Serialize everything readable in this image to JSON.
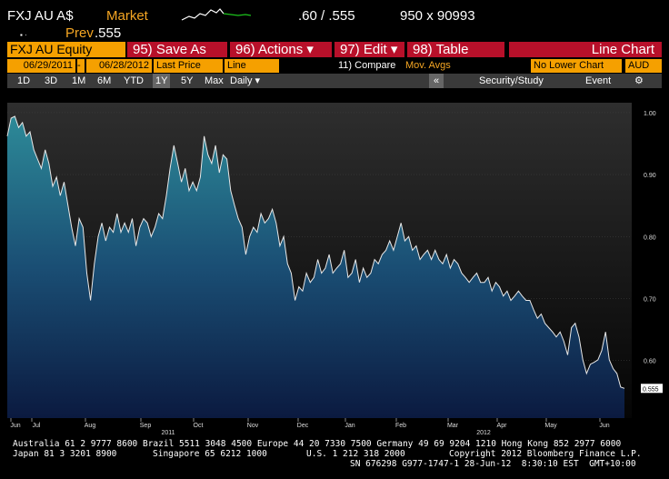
{
  "header": {
    "ticker": "FXJ AU A$",
    "market_label": "Market",
    "quote": ".60 / .555",
    "size": "950 x 90993",
    "prev_label": "Prev",
    "prev_value": ".555"
  },
  "toolbar": {
    "security": "FXJ AU Equity",
    "buttons": [
      "95) Save As",
      "96) Actions ▾",
      "97) Edit ▾",
      "98) Table"
    ],
    "chart_name": "Line Chart",
    "start_date": "06/29/2011",
    "dash": "-",
    "end_date": "06/28/2012",
    "field": "Last Price",
    "style": "Line",
    "compare": "11) Compare",
    "mov_avgs": "Mov. Avgs",
    "lower": "No Lower Chart",
    "currency": "AUD",
    "periods": [
      "1D",
      "3D",
      "1M",
      "6M",
      "YTD",
      "1Y",
      "5Y",
      "Max"
    ],
    "frequency": "Daily ▾",
    "collapse": "«",
    "study": "Security/Study",
    "event": "Event",
    "settings": "⚙"
  },
  "chart_data": {
    "type": "area",
    "color": "#e8e8e8",
    "values": [
      0.962,
      0.991,
      0.994,
      0.976,
      0.984,
      0.962,
      0.969,
      0.94,
      0.925,
      0.91,
      0.94,
      0.918,
      0.881,
      0.896,
      0.866,
      0.888,
      0.851,
      0.815,
      0.785,
      0.829,
      0.815,
      0.741,
      0.697,
      0.756,
      0.8,
      0.822,
      0.793,
      0.815,
      0.807,
      0.837,
      0.807,
      0.822,
      0.807,
      0.829,
      0.785,
      0.815,
      0.829,
      0.822,
      0.8,
      0.815,
      0.837,
      0.829,
      0.866,
      0.91,
      0.947,
      0.918,
      0.888,
      0.91,
      0.874,
      0.888,
      0.874,
      0.896,
      0.962,
      0.932,
      0.918,
      0.947,
      0.903,
      0.932,
      0.925,
      0.874,
      0.851,
      0.829,
      0.815,
      0.771,
      0.8,
      0.815,
      0.807,
      0.837,
      0.822,
      0.829,
      0.844,
      0.822,
      0.785,
      0.8,
      0.756,
      0.741,
      0.697,
      0.719,
      0.712,
      0.741,
      0.726,
      0.734,
      0.763,
      0.741,
      0.749,
      0.771,
      0.741,
      0.749,
      0.756,
      0.778,
      0.734,
      0.741,
      0.763,
      0.726,
      0.749,
      0.734,
      0.741,
      0.763,
      0.756,
      0.771,
      0.778,
      0.793,
      0.778,
      0.8,
      0.822,
      0.793,
      0.8,
      0.778,
      0.785,
      0.763,
      0.771,
      0.778,
      0.763,
      0.778,
      0.763,
      0.756,
      0.771,
      0.749,
      0.763,
      0.756,
      0.741,
      0.734,
      0.726,
      0.734,
      0.741,
      0.726,
      0.726,
      0.734,
      0.712,
      0.726,
      0.719,
      0.704,
      0.712,
      0.697,
      0.704,
      0.712,
      0.704,
      0.697,
      0.697,
      0.682,
      0.668,
      0.675,
      0.66,
      0.653,
      0.646,
      0.638,
      0.646,
      0.631,
      0.609,
      0.653,
      0.66,
      0.638,
      0.601,
      0.579,
      0.594,
      0.597,
      0.601,
      0.616,
      0.646,
      0.601,
      0.587,
      0.579,
      0.557,
      0.555
    ],
    "ylim": [
      0.507,
      1.016
    ],
    "yticks": [
      {
        "value": 0.6,
        "label": "0.60"
      },
      {
        "value": 0.7,
        "label": "0.70"
      },
      {
        "value": 0.8,
        "label": "0.80"
      },
      {
        "value": 0.9,
        "label": "0.90"
      },
      {
        "value": 1.0,
        "label": "1.00"
      }
    ],
    "last_price": {
      "value": 0.555,
      "label": "0.555"
    },
    "x_labels": [
      "Jun",
      "Jul",
      "Aug",
      "Sep",
      "Oct",
      "Nov",
      "Dec",
      "Jan",
      "Feb",
      "Mar",
      "Apr",
      "May",
      "Jun"
    ],
    "year_labels": [
      "2011",
      "2012"
    ]
  },
  "footer": {
    "line1": "Australia 61 2 9777 8600 Brazil 5511 3048 4500 Europe 44 20 7330 7500 Germany 49 69 9204 1210 Hong Kong 852 2977 6000",
    "line2a": "Japan 81 3 3201 8900",
    "line2b": "Singapore 65 6212 1000",
    "line2c": "U.S. 1 212 318 2000",
    "line2d": "Copyright 2012 Bloomberg Finance L.P.",
    "line3": "SN 676298 G977-1747-1 28-Jun-12  8:30:10 EST  GMT+10:00"
  }
}
